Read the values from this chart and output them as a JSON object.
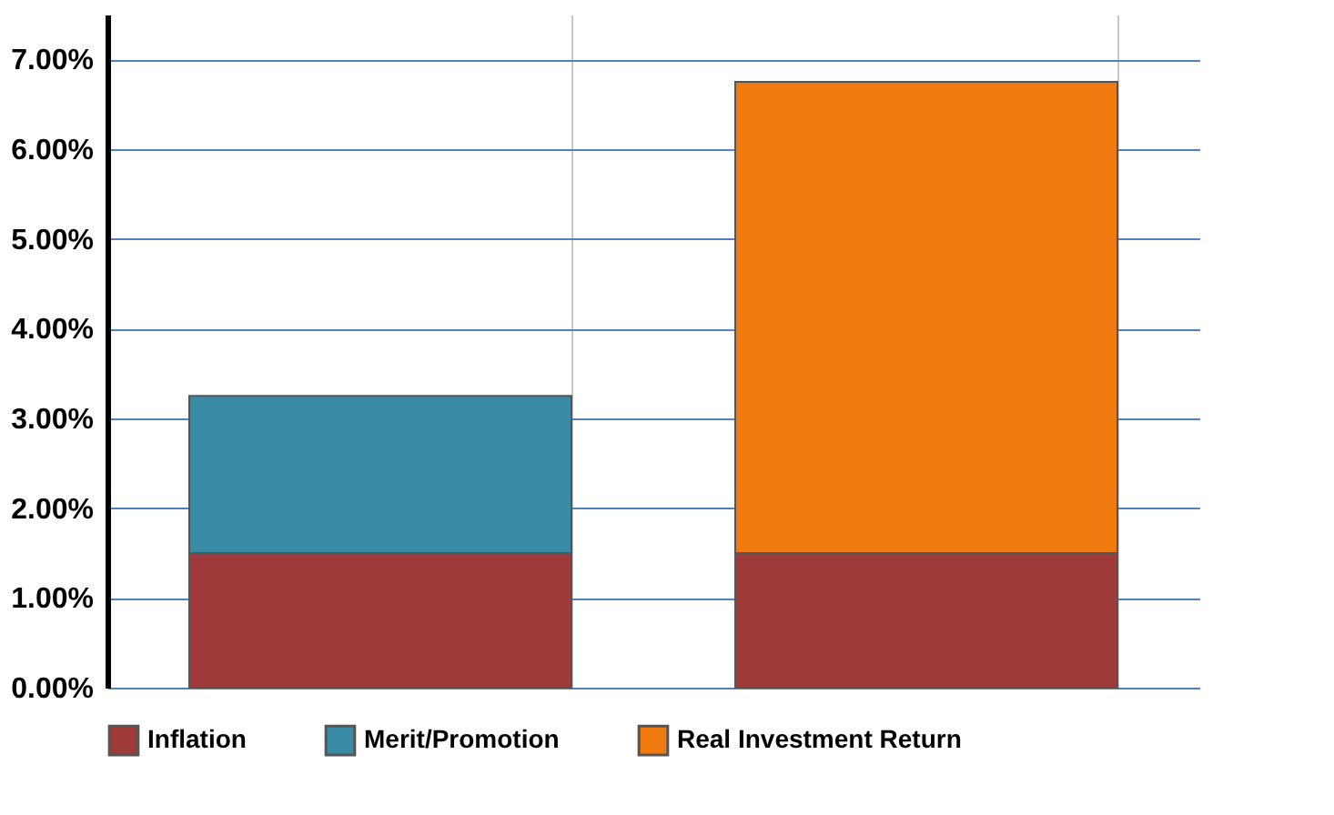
{
  "chart_data": {
    "type": "bar",
    "stacked": true,
    "categories": [
      null,
      null
    ],
    "series": [
      {
        "name": "Inflation",
        "color": "#9e3a3a",
        "values": [
          1.5,
          1.5
        ]
      },
      {
        "name": "Merit/Promotion",
        "color": "#3a8ba5",
        "values": [
          1.75,
          null
        ]
      },
      {
        "name": "Real Investment Return",
        "color": "#f07a10",
        "values": [
          null,
          5.25
        ]
      }
    ],
    "ylim": [
      0,
      7.5
    ],
    "yticks": [
      {
        "value": 0,
        "label": "0.00%"
      },
      {
        "value": 1,
        "label": "1.00%"
      },
      {
        "value": 2,
        "label": "2.00%"
      },
      {
        "value": 3,
        "label": "3.00%"
      },
      {
        "value": 4,
        "label": "4.00%"
      },
      {
        "value": 5,
        "label": "5.00%"
      },
      {
        "value": 6,
        "label": "6.00%"
      },
      {
        "value": 7,
        "label": "7.00%"
      }
    ],
    "grid": true,
    "legend": "bottom"
  }
}
